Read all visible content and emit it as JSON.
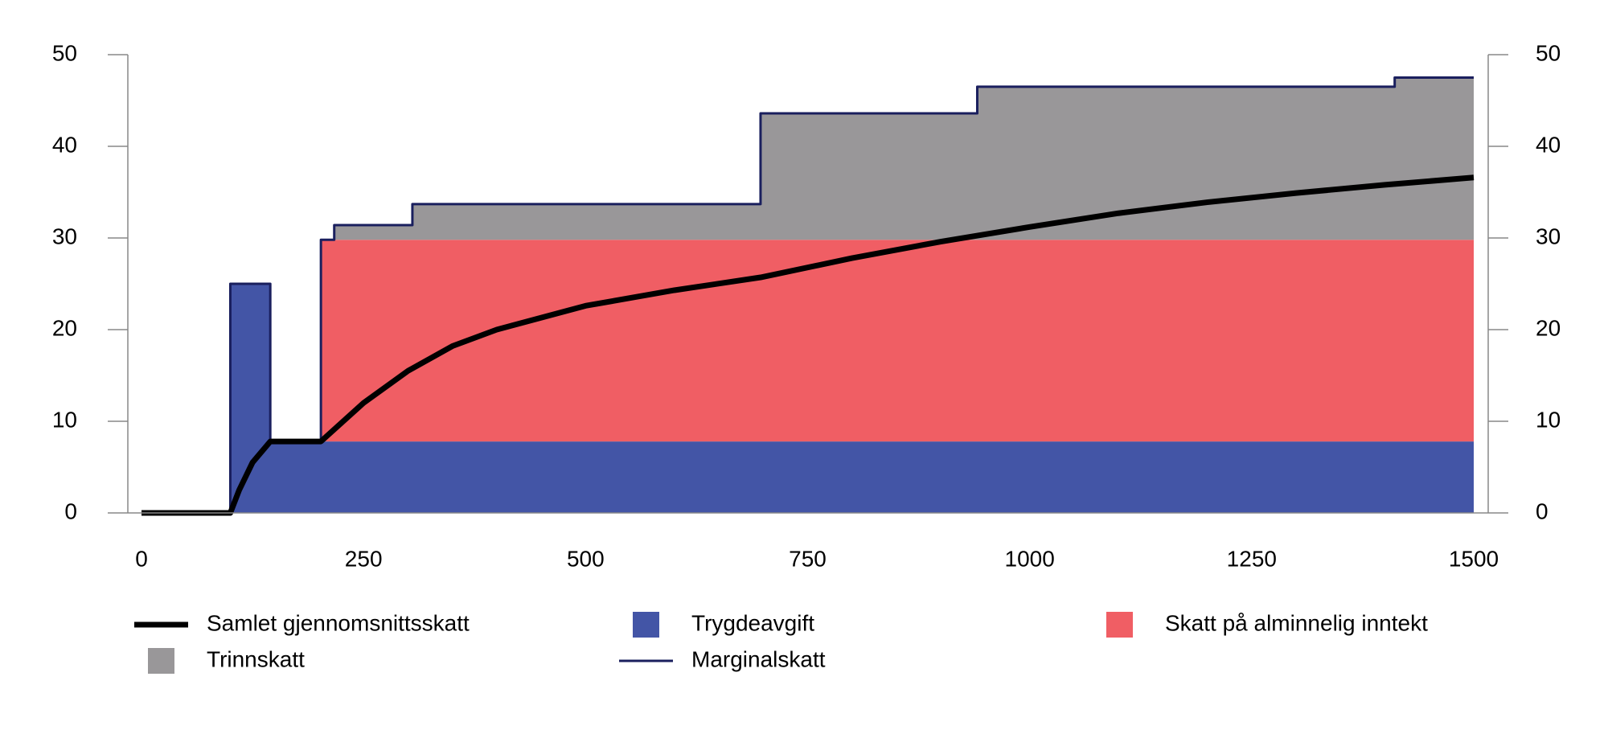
{
  "chart_data": {
    "type": "stacked-step-area",
    "xlim": [
      0,
      1500
    ],
    "xticks": [
      0,
      250,
      500,
      750,
      1000,
      1250,
      1500
    ],
    "ylim": [
      0,
      50
    ],
    "yticks": [
      0,
      10,
      20,
      30,
      40,
      50
    ],
    "series": [
      {
        "name": "Trygdeavgift",
        "color": "#4355a6",
        "kind": "area",
        "x": [
          0,
          100,
          145,
          202,
          217,
          305,
          697,
          941,
          1411,
          1500
        ],
        "values": [
          0,
          25,
          7.8,
          7.8,
          7.8,
          7.8,
          7.8,
          7.8,
          7.8,
          7.8
        ]
      },
      {
        "name": "Skatt på alminnelig inntekt",
        "color": "#f05e64",
        "kind": "area",
        "x": [
          0,
          100,
          145,
          202,
          217,
          305,
          697,
          941,
          1411,
          1500
        ],
        "values": [
          0,
          0,
          0,
          22,
          22,
          22,
          22,
          22,
          22,
          22
        ]
      },
      {
        "name": "Trinnskatt",
        "color": "#999799",
        "kind": "area",
        "x": [
          0,
          100,
          145,
          202,
          217,
          305,
          697,
          941,
          1411,
          1500
        ],
        "values": [
          0,
          0,
          0,
          0,
          1.6,
          3.9,
          13.8,
          16.7,
          17.7,
          17.7
        ]
      },
      {
        "name": "Marginalskatt",
        "color": "#1a1f5e",
        "kind": "step",
        "x": [
          0,
          100,
          145,
          202,
          217,
          305,
          697,
          941,
          1411,
          1500
        ],
        "values": [
          0,
          25,
          7.8,
          29.8,
          31.4,
          33.7,
          43.6,
          46.5,
          47.5,
          47.5
        ]
      },
      {
        "name": "Samlet gjennomsnittsskatt",
        "color": "#000000",
        "kind": "line",
        "x": [
          0,
          100,
          110,
          125,
          145,
          202,
          250,
          300,
          350,
          400,
          500,
          600,
          697,
          800,
          900,
          1000,
          1100,
          1200,
          1300,
          1400,
          1500
        ],
        "values": [
          0,
          0,
          2.5,
          5.5,
          7.8,
          7.8,
          12,
          15.5,
          18.2,
          20,
          22.6,
          24.3,
          25.7,
          27.8,
          29.6,
          31.2,
          32.7,
          33.9,
          34.9,
          35.8,
          36.6
        ]
      }
    ]
  }
}
